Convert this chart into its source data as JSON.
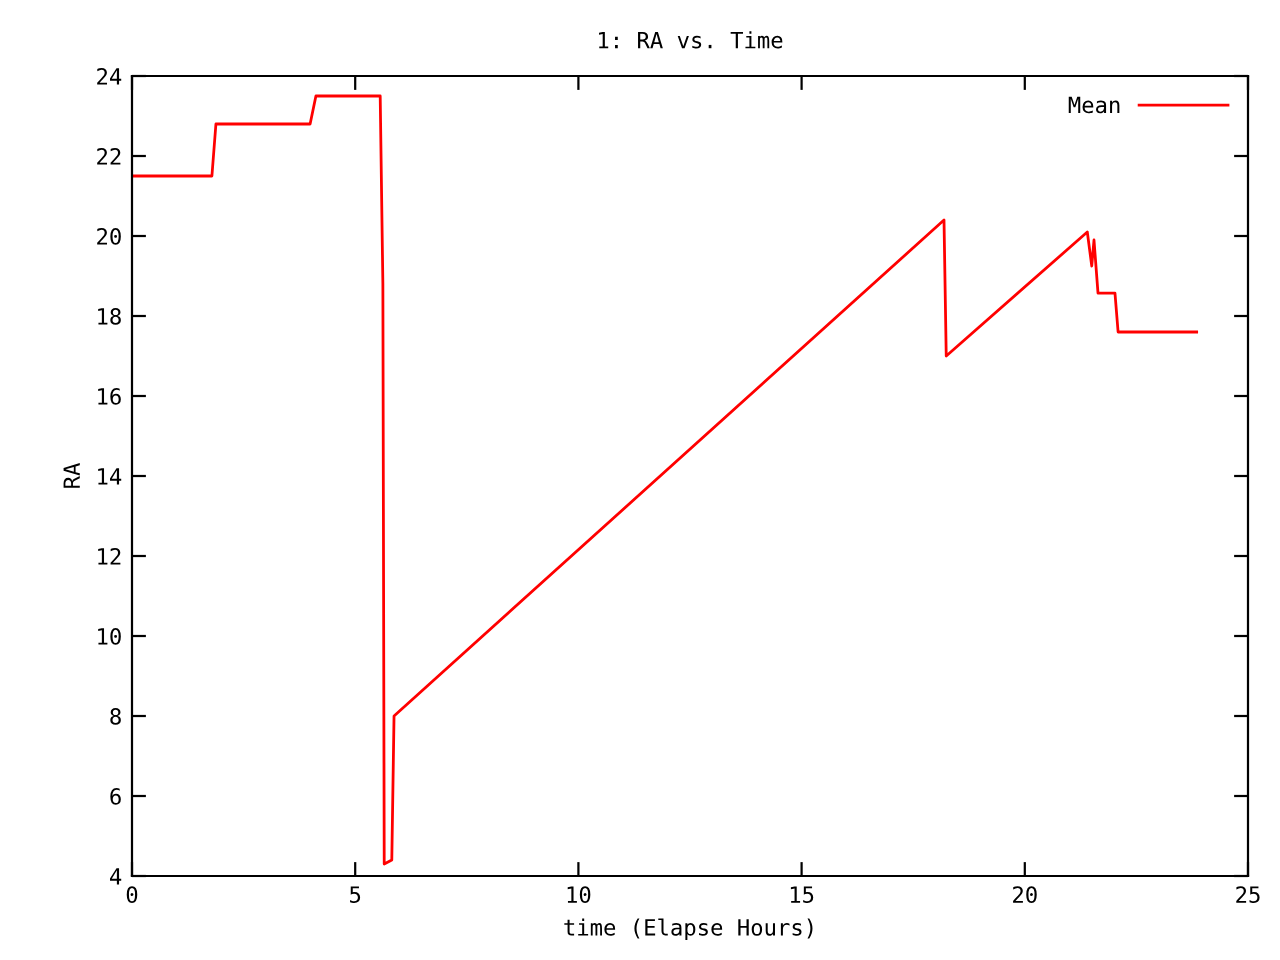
{
  "chart_data": {
    "type": "line",
    "title": "1: RA vs. Time",
    "xlabel": "time (Elapse Hours)",
    "ylabel": "RA",
    "xlim": [
      0,
      25
    ],
    "xticks": [
      0,
      5,
      10,
      15,
      20,
      25
    ],
    "ylim": [
      4,
      24
    ],
    "yticks": [
      4,
      6,
      8,
      10,
      12,
      14,
      16,
      18,
      20,
      22,
      24
    ],
    "grid": false,
    "legend": "top right",
    "marker": "none",
    "line_style": "solid",
    "series": [
      {
        "name": "Mean",
        "color": "#ff0000",
        "x": [
          0,
          1.79,
          1.88,
          3.99,
          4.12,
          5.56,
          5.62,
          5.65,
          5.82,
          5.87,
          18.19,
          18.24,
          21.4,
          21.5,
          21.55,
          21.64,
          22.02,
          22.09,
          23.85
        ],
        "values": [
          21.5,
          21.5,
          22.8,
          22.8,
          23.5,
          23.5,
          18.8,
          4.3,
          4.4,
          8.0,
          20.4,
          17.0,
          20.1,
          19.25,
          19.9,
          18.57,
          18.57,
          17.6,
          17.6
        ]
      }
    ]
  }
}
